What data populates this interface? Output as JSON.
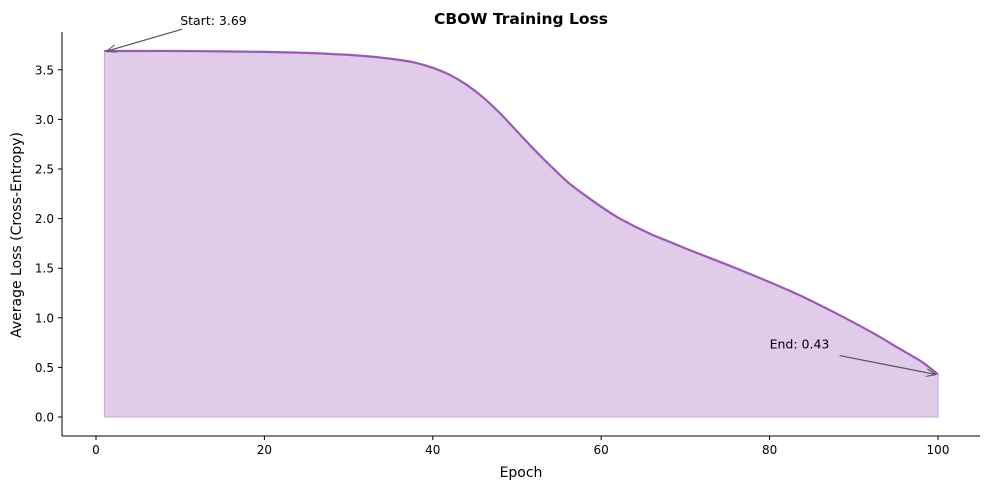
{
  "chart_data": {
    "type": "area",
    "title": "CBOW Training Loss",
    "xlabel": "Epoch",
    "ylabel": "Average Loss (Cross-Entropy)",
    "xlim": [
      -4,
      105
    ],
    "ylim": [
      -0.19,
      3.88
    ],
    "xticks": [
      0,
      20,
      40,
      60,
      80,
      100
    ],
    "yticks": [
      0.0,
      0.5,
      1.0,
      1.5,
      2.0,
      2.5,
      3.0,
      3.5
    ],
    "xtick_labels": [
      "0",
      "20",
      "40",
      "60",
      "80",
      "100"
    ],
    "ytick_labels": [
      "0.0",
      "0.5",
      "1.0",
      "1.5",
      "2.0",
      "2.5",
      "3.0",
      "3.5"
    ],
    "grid": false,
    "legend": null,
    "series": [
      {
        "name": "Average Loss",
        "color": "#9b59b6",
        "fill_color": "#e0cbe9",
        "x": [
          1,
          5,
          10,
          15,
          20,
          25,
          30,
          33,
          36,
          38,
          40,
          42,
          44,
          46,
          48,
          50,
          52,
          54,
          56,
          58,
          60,
          62,
          64,
          66,
          68,
          70,
          73,
          76,
          80,
          84,
          88,
          92,
          95,
          98,
          100
        ],
        "values": [
          3.69,
          3.69,
          3.69,
          3.685,
          3.68,
          3.67,
          3.65,
          3.63,
          3.6,
          3.57,
          3.52,
          3.45,
          3.35,
          3.22,
          3.06,
          2.88,
          2.7,
          2.53,
          2.37,
          2.24,
          2.12,
          2.01,
          1.92,
          1.84,
          1.77,
          1.7,
          1.6,
          1.5,
          1.36,
          1.21,
          1.04,
          0.86,
          0.71,
          0.56,
          0.43
        ]
      }
    ],
    "annotations": [
      {
        "text": "Start: 3.69",
        "xy": [
          1,
          3.69
        ],
        "xytext": [
          10,
          3.99
        ]
      },
      {
        "text": "End: 0.43",
        "xy": [
          100,
          0.43
        ],
        "xytext": [
          80,
          0.73
        ]
      }
    ]
  }
}
